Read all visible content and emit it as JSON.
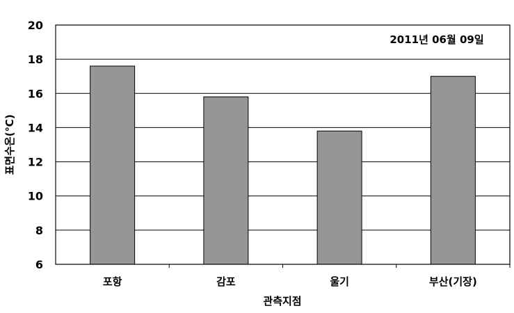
{
  "chart_data": {
    "type": "bar",
    "categories": [
      "포항",
      "감포",
      "울기",
      "부산(기장)"
    ],
    "values": [
      17.6,
      15.8,
      13.8,
      17.0
    ],
    "title": "",
    "annotation": "2011년 06월 09일",
    "xlabel": "관측지점",
    "ylabel": "표면수온(℃)",
    "ylim": [
      6,
      20
    ],
    "yticks": [
      6,
      8,
      10,
      12,
      14,
      16,
      18,
      20
    ],
    "grid": true,
    "bar_color": "#969696",
    "bar_edge_color": "#000000"
  }
}
